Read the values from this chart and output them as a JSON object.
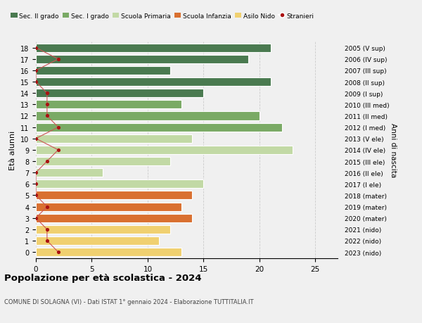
{
  "ages": [
    18,
    17,
    16,
    15,
    14,
    13,
    12,
    11,
    10,
    9,
    8,
    7,
    6,
    5,
    4,
    3,
    2,
    1,
    0
  ],
  "right_labels": [
    "2005 (V sup)",
    "2006 (IV sup)",
    "2007 (III sup)",
    "2008 (II sup)",
    "2009 (I sup)",
    "2010 (III med)",
    "2011 (II med)",
    "2012 (I med)",
    "2013 (V ele)",
    "2014 (IV ele)",
    "2015 (III ele)",
    "2016 (II ele)",
    "2017 (I ele)",
    "2018 (mater)",
    "2019 (mater)",
    "2020 (mater)",
    "2021 (nido)",
    "2022 (nido)",
    "2023 (nido)"
  ],
  "bar_values": [
    21,
    19,
    12,
    21,
    15,
    13,
    20,
    22,
    14,
    23,
    12,
    6,
    15,
    14,
    13,
    14,
    12,
    11,
    13
  ],
  "bar_colors": [
    "#4a7a50",
    "#4a7a50",
    "#4a7a50",
    "#4a7a50",
    "#4a7a50",
    "#7aaa65",
    "#7aaa65",
    "#7aaa65",
    "#c2d9a5",
    "#c2d9a5",
    "#c2d9a5",
    "#c2d9a5",
    "#c2d9a5",
    "#d97030",
    "#d97030",
    "#d97030",
    "#f0d070",
    "#f0d070",
    "#f0d070"
  ],
  "stranieri_values": [
    0,
    2,
    0,
    0,
    1,
    1,
    1,
    2,
    0,
    2,
    1,
    0,
    0,
    0,
    1,
    0,
    1,
    1,
    2
  ],
  "stranieri_color": "#aa1111",
  "stranieri_line_color": "#cc5555",
  "title": "Popolazione per età scolastica - 2024",
  "subtitle": "COMUNE DI SOLAGNA (VI) - Dati ISTAT 1° gennaio 2024 - Elaborazione TUTTITALIA.IT",
  "ylabel": "Età alunni",
  "right_ylabel": "Anni di nascita",
  "xlim": [
    0,
    27
  ],
  "xticks": [
    0,
    5,
    10,
    15,
    20,
    25
  ],
  "legend_labels": [
    "Sec. II grado",
    "Sec. I grado",
    "Scuola Primaria",
    "Scuola Infanzia",
    "Asilo Nido",
    "Stranieri"
  ],
  "legend_colors": [
    "#4a7a50",
    "#7aaa65",
    "#c2d9a5",
    "#d97030",
    "#f0d070",
    "#aa1111"
  ],
  "bar_height": 0.75,
  "background_color": "#f0f0f0",
  "grid_color": "#cccccc"
}
